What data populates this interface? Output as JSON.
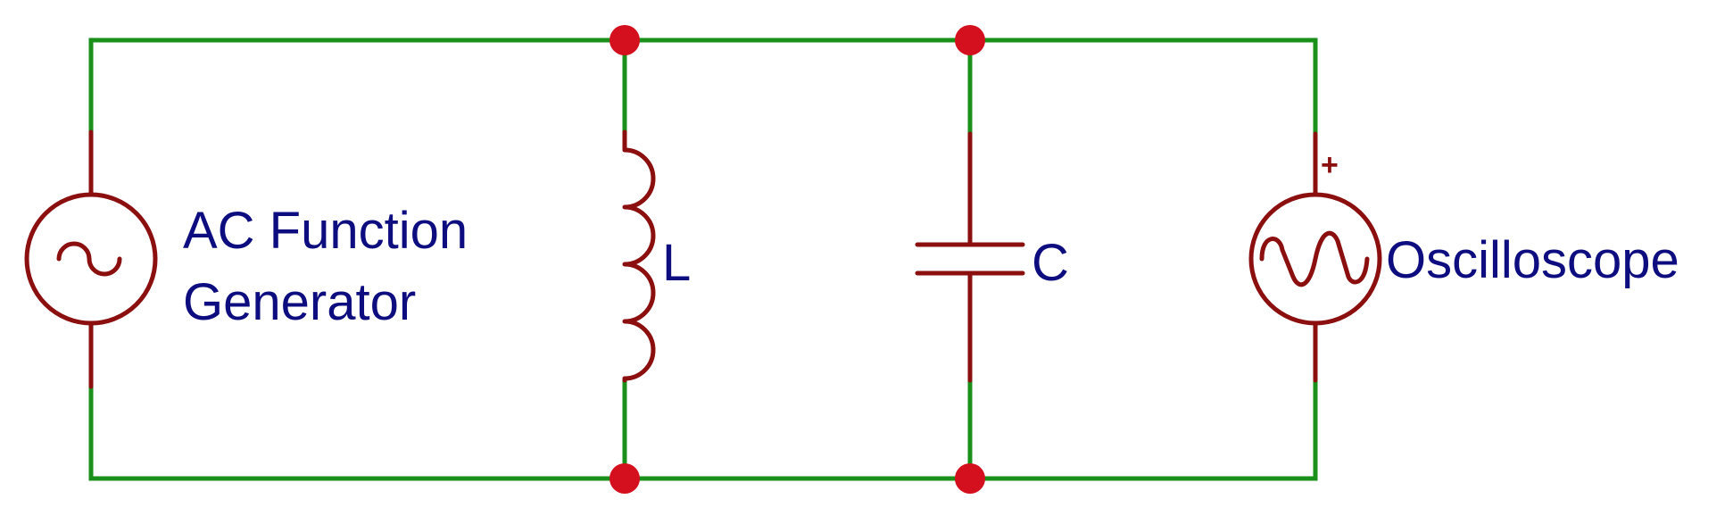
{
  "colors": {
    "wire": "#1a8f1a",
    "component": "#8b0f0f",
    "junction": "#d40f1e",
    "label": "#0d0d80",
    "background": "#ffffff"
  },
  "components": {
    "source": {
      "line1": "AC Function",
      "line2": "Generator",
      "icon": "sine-source-icon"
    },
    "inductor": {
      "label": "L",
      "icon": "inductor-coil-icon"
    },
    "capacitor": {
      "label": "C",
      "icon": "capacitor-plates-icon"
    },
    "meter": {
      "label": "Oscilloscope",
      "polarity": "+",
      "icon": "oscilloscope-waveform-icon"
    }
  }
}
